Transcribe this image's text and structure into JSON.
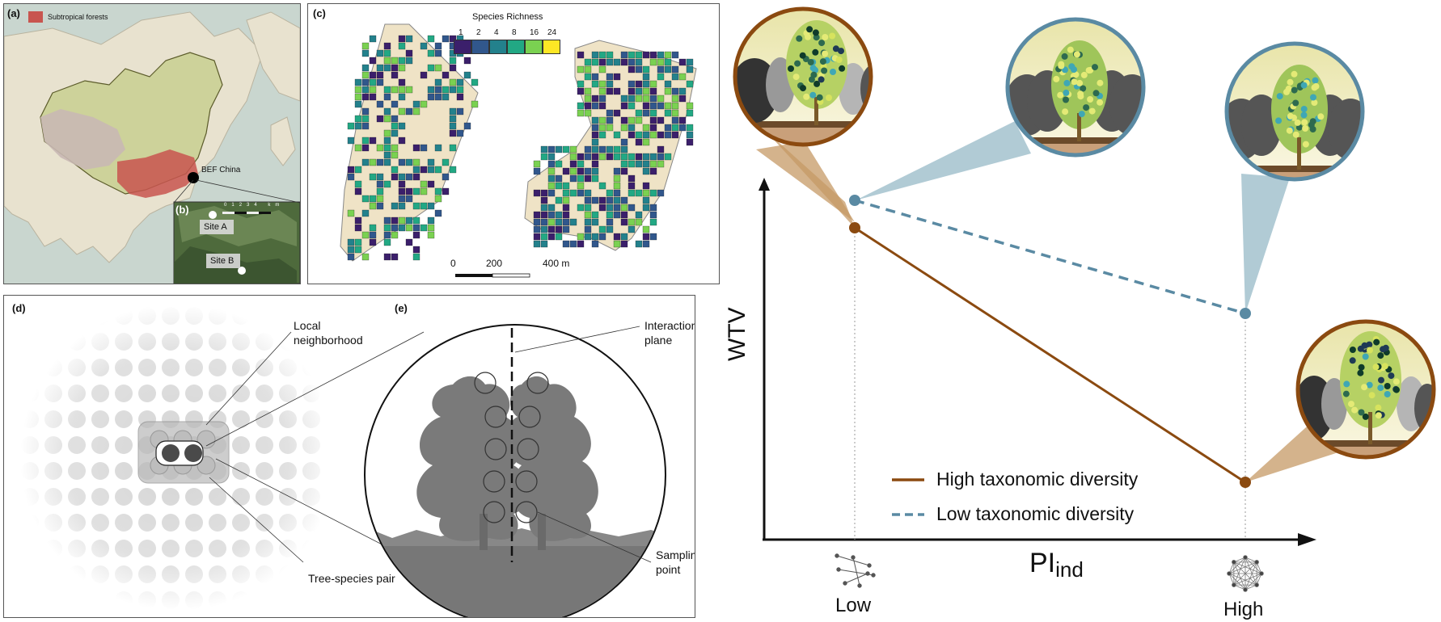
{
  "panels": {
    "a": {
      "label": "(a)",
      "legend": "Subtropical forests",
      "site_label": "BEF China"
    },
    "b": {
      "label": "(b)",
      "site_a": "Site A",
      "site_b": "Site B",
      "scale_ticks": [
        "0",
        "1",
        "2",
        "3",
        "4 km"
      ]
    },
    "c": {
      "label": "(c)",
      "legend_title": "Species Richness",
      "legend_values": [
        "1",
        "2",
        "4",
        "8",
        "16",
        "24"
      ],
      "legend_colors": [
        "#3b1f6b",
        "#31578c",
        "#23818c",
        "#22a884",
        "#7ad151",
        "#fde725"
      ],
      "scale_ticks": [
        "0",
        "200",
        "400 m"
      ]
    },
    "d": {
      "label": "(d)",
      "local_neighborhood": "Local\nneighborhood",
      "tree_species_pair": "Tree-species pair"
    },
    "e": {
      "label": "(e)",
      "interaction_plane": "Interaction\nplane",
      "sampling_point": "Sampling\npoint"
    }
  },
  "graph": {
    "ylabel": "WTV",
    "xlabel_main": "PI",
    "xlabel_sub": "ind",
    "x_low": "Low",
    "x_high": "High",
    "legend": {
      "high": "High taxonomic diversity",
      "low": "Low taxonomic diversity"
    },
    "colors": {
      "high": "#8b4a10",
      "low": "#5a8aa3"
    }
  }
}
